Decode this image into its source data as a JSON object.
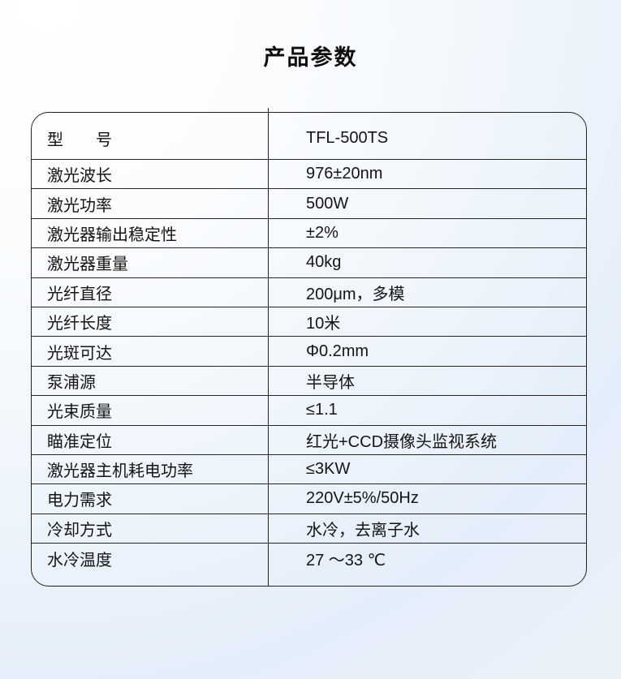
{
  "page": {
    "title": "产品参数"
  },
  "table": {
    "rows": [
      {
        "label": "型　　号",
        "value": "TFL-500TS"
      },
      {
        "label": "激光波长",
        "value": "976±20nm"
      },
      {
        "label": "激光功率",
        "value": "500W"
      },
      {
        "label": "激光器输出稳定性",
        "value": "±2%"
      },
      {
        "label": "激光器重量",
        "value": "40kg"
      },
      {
        "label": "光纤直径",
        "value": "200μm，多模"
      },
      {
        "label": "光纤长度",
        "value": "10米"
      },
      {
        "label": "光斑可达",
        "value": "Φ0.2mm"
      },
      {
        "label": "泵浦源",
        "value": "半导体"
      },
      {
        "label": "光束质量",
        "value": "≤1.1"
      },
      {
        "label": "瞄准定位",
        "value": "红光+CCD摄像头监视系统"
      },
      {
        "label": "激光器主机耗电功率",
        "value": "≤3KW"
      },
      {
        "label": "电力需求",
        "value": "220V±5%/50Hz"
      },
      {
        "label": "冷却方式",
        "value": "水冷，去离子水"
      },
      {
        "label": "水冷温度",
        "value": "27 ～33 ℃"
      }
    ]
  },
  "colors": {
    "border": "#222222",
    "text": "#141414",
    "background_tint": "#e4eefa"
  }
}
